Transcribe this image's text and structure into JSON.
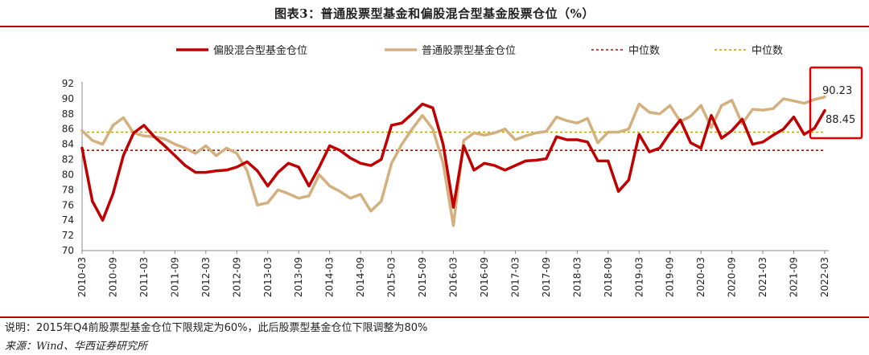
{
  "header": {
    "title": "图表3：普通股票型基金和偏股混合型基金股票仓位（%）"
  },
  "footer": {
    "note": "说明：2015年Q4前股票型基金仓位下限规定为60%，此后股票型基金仓位下限调整为80%",
    "source": "来源：Wind、华西证券研究所"
  },
  "chart_data": {
    "type": "line",
    "ylim": [
      70,
      92
    ],
    "yticks": [
      70,
      72,
      74,
      76,
      78,
      80,
      82,
      84,
      86,
      88,
      90,
      92
    ],
    "xlabels": [
      "2010-03",
      "2010-09",
      "2011-03",
      "2011-09",
      "2012-03",
      "2012-09",
      "2013-03",
      "2013-09",
      "2014-03",
      "2014-09",
      "2015-03",
      "2015-09",
      "2016-03",
      "2016-09",
      "2017-03",
      "2017-09",
      "2018-03",
      "2018-09",
      "2019-03",
      "2019-09",
      "2020-03",
      "2020-09",
      "2021-03",
      "2021-09",
      "2022-03"
    ],
    "legend_position": "top",
    "series": [
      {
        "name": "偏股混合型基金仓位",
        "color": "#c00000",
        "style": "solid",
        "values": [
          [
            0,
            83.5
          ],
          [
            1,
            76.5
          ],
          [
            2,
            74.0
          ],
          [
            3,
            77.5
          ],
          [
            4,
            82.5
          ],
          [
            5,
            85.5
          ],
          [
            6,
            86.5
          ],
          [
            7,
            85.0
          ],
          [
            8,
            83.8
          ],
          [
            9,
            82.5
          ],
          [
            10,
            81.2
          ],
          [
            11,
            80.3
          ],
          [
            12,
            80.3
          ],
          [
            13,
            80.5
          ],
          [
            14,
            80.6
          ],
          [
            15,
            81.0
          ],
          [
            16,
            81.7
          ],
          [
            17,
            80.5
          ],
          [
            18,
            78.5
          ],
          [
            19,
            80.3
          ],
          [
            20,
            81.5
          ],
          [
            21,
            81.0
          ],
          [
            22,
            78.5
          ],
          [
            23,
            81.0
          ],
          [
            24,
            83.8
          ],
          [
            25,
            83.2
          ],
          [
            26,
            82.2
          ],
          [
            27,
            81.5
          ],
          [
            28,
            81.2
          ],
          [
            29,
            82.0
          ],
          [
            30,
            86.5
          ],
          [
            31,
            86.8
          ],
          [
            32,
            88.0
          ],
          [
            33,
            89.3
          ],
          [
            34,
            88.8
          ],
          [
            35,
            84.0
          ],
          [
            36,
            75.7
          ],
          [
            37,
            83.8
          ],
          [
            38,
            80.6
          ],
          [
            39,
            81.5
          ],
          [
            40,
            81.2
          ],
          [
            41,
            80.6
          ],
          [
            42,
            81.2
          ],
          [
            43,
            81.8
          ],
          [
            44,
            81.9
          ],
          [
            45,
            82.1
          ],
          [
            46,
            85.0
          ],
          [
            47,
            84.6
          ],
          [
            48,
            84.6
          ],
          [
            49,
            84.3
          ],
          [
            50,
            81.8
          ],
          [
            51,
            81.8
          ],
          [
            52,
            77.8
          ],
          [
            53,
            79.3
          ],
          [
            54,
            85.3
          ],
          [
            55,
            83.0
          ],
          [
            56,
            83.5
          ],
          [
            57,
            85.5
          ],
          [
            58,
            87.2
          ],
          [
            59,
            84.2
          ],
          [
            60,
            83.5
          ],
          [
            61,
            87.8
          ],
          [
            62,
            84.8
          ],
          [
            63,
            85.8
          ],
          [
            64,
            87.3
          ],
          [
            65,
            84.0
          ],
          [
            66,
            84.3
          ],
          [
            67,
            85.2
          ],
          [
            68,
            86.0
          ],
          [
            69,
            87.6
          ],
          [
            70,
            85.3
          ],
          [
            71,
            86.1
          ],
          [
            72,
            88.45
          ]
        ]
      },
      {
        "name": "普通股票型基金仓位",
        "color": "#d3b07e",
        "style": "solid",
        "values": [
          [
            0,
            85.8
          ],
          [
            1,
            84.5
          ],
          [
            2,
            84.0
          ],
          [
            3,
            86.5
          ],
          [
            4,
            87.5
          ],
          [
            5,
            85.5
          ],
          [
            6,
            85.1
          ],
          [
            7,
            85.0
          ],
          [
            8,
            84.7
          ],
          [
            9,
            84.0
          ],
          [
            10,
            83.5
          ],
          [
            11,
            82.8
          ],
          [
            12,
            83.8
          ],
          [
            13,
            82.5
          ],
          [
            14,
            83.5
          ],
          [
            15,
            82.8
          ],
          [
            16,
            80.5
          ],
          [
            17,
            76.0
          ],
          [
            18,
            76.3
          ],
          [
            19,
            78.0
          ],
          [
            20,
            77.5
          ],
          [
            21,
            76.9
          ],
          [
            22,
            77.2
          ],
          [
            23,
            80.0
          ],
          [
            24,
            78.5
          ],
          [
            25,
            77.8
          ],
          [
            26,
            76.9
          ],
          [
            27,
            77.4
          ],
          [
            28,
            75.2
          ],
          [
            29,
            76.5
          ],
          [
            30,
            81.5
          ],
          [
            31,
            84.0
          ],
          [
            32,
            86.0
          ],
          [
            33,
            87.8
          ],
          [
            34,
            86.0
          ],
          [
            35,
            81.5
          ],
          [
            36,
            73.3
          ],
          [
            37,
            84.5
          ],
          [
            38,
            85.5
          ],
          [
            39,
            85.2
          ],
          [
            40,
            85.5
          ],
          [
            41,
            86.0
          ],
          [
            42,
            84.6
          ],
          [
            43,
            85.1
          ],
          [
            44,
            85.5
          ],
          [
            45,
            85.7
          ],
          [
            46,
            87.6
          ],
          [
            47,
            87.1
          ],
          [
            48,
            86.8
          ],
          [
            49,
            87.4
          ],
          [
            50,
            84.2
          ],
          [
            51,
            85.6
          ],
          [
            52,
            85.6
          ],
          [
            53,
            86.0
          ],
          [
            54,
            89.3
          ],
          [
            55,
            88.2
          ],
          [
            56,
            88.0
          ],
          [
            57,
            89.1
          ],
          [
            58,
            87.0
          ],
          [
            59,
            87.7
          ],
          [
            60,
            89.1
          ],
          [
            61,
            86.2
          ],
          [
            62,
            89.1
          ],
          [
            63,
            89.8
          ],
          [
            64,
            86.7
          ],
          [
            65,
            88.6
          ],
          [
            66,
            88.5
          ],
          [
            67,
            88.7
          ],
          [
            68,
            90.0
          ],
          [
            69,
            89.7
          ],
          [
            70,
            89.4
          ],
          [
            71,
            89.9
          ],
          [
            72,
            90.23
          ]
        ]
      },
      {
        "name": "中位数",
        "color": "#c00000",
        "style": "dashed",
        "value": 83.2
      },
      {
        "name": "中位数",
        "color": "#c8a000",
        "style": "dashed",
        "value": 85.6
      }
    ],
    "annotations": [
      {
        "text": "90.23",
        "series": "普通股票型基金仓位"
      },
      {
        "text": "88.45",
        "series": "偏股混合型基金仓位"
      }
    ]
  }
}
